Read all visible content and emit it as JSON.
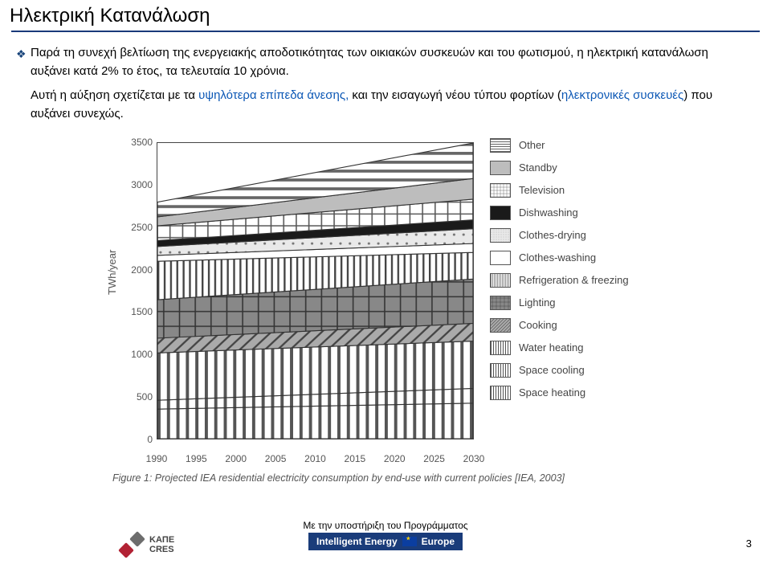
{
  "title": "Ηλεκτρική Κατανάλωση",
  "para1_a": "Παρά τη συνεχή βελτίωση της ενεργειακής αποδοτικότητας των οικιακών συσκευών και του φωτισμού, η ηλεκτρική κατανάλωση αυξάνει κατά 2% το έτος, τα τελευταία 10 χρόνια.",
  "para2_a": "Αυτή η αύξηση σχετίζεται με τα ",
  "para2_link1": "υψηλότερα επίπεδα άνεσης,",
  "para2_b": " και την εισαγωγή νέου τύπου φορτίων (",
  "para2_link2": "ηλεκτρονικές συσκευές",
  "para2_c": ") που αυξάνει συνεχώς.",
  "chart": {
    "yaxis_label": "TWh/year",
    "yticks": [
      0,
      500,
      1000,
      1500,
      2000,
      2500,
      3000,
      3500
    ],
    "xticks": [
      1990,
      1995,
      2000,
      2005,
      2010,
      2015,
      2020,
      2025,
      2030
    ],
    "series": [
      {
        "key": "space_heating",
        "label": "Space heating",
        "fill": "#999",
        "pattern": "vstripe",
        "top1990": 10,
        "top2030": 12
      },
      {
        "key": "space_cooling",
        "label": "Space cooling",
        "fill": "#fff",
        "pattern": "vstripe",
        "top1990": 13,
        "top2030": 17
      },
      {
        "key": "water_heating",
        "label": "Water heating",
        "fill": "#6b6b6b",
        "pattern": "vstripe",
        "top1990": 29,
        "top2030": 33
      },
      {
        "key": "cooking",
        "label": "Cooking",
        "fill": "#888",
        "pattern": "diag",
        "top1990": 34,
        "top2030": 39
      },
      {
        "key": "lighting",
        "label": "Lighting",
        "fill": "#666",
        "pattern": "weave",
        "top1990": 47,
        "top2030": 54
      },
      {
        "key": "refrigeration",
        "label": "Refrigeration & freezing",
        "fill": "#fff",
        "pattern": "vstripe2",
        "top1990": 60,
        "top2030": 63
      },
      {
        "key": "clothes_washing",
        "label": "Clothes-washing",
        "fill": "#fff",
        "pattern": "none",
        "top1990": 62,
        "top2030": 66
      },
      {
        "key": "clothes_drying",
        "label": "Clothes-drying",
        "fill": "#e8e8e8",
        "pattern": "dots",
        "top1990": 65,
        "top2030": 71
      },
      {
        "key": "dishwashing",
        "label": "Dishwashing",
        "fill": "#1a1a1a",
        "pattern": "solid",
        "top1990": 67,
        "top2030": 74
      },
      {
        "key": "television",
        "label": "Television",
        "fill": "#fff",
        "pattern": "grid",
        "top1990": 72,
        "top2030": 81
      },
      {
        "key": "standby",
        "label": "Standby",
        "fill": "#bdbdbd",
        "pattern": "solid",
        "top1990": 75,
        "top2030": 88
      },
      {
        "key": "other",
        "label": "Other",
        "fill": "#fff",
        "pattern": "hstripe",
        "top1990": 80,
        "top2030": 100
      }
    ]
  },
  "caption": "Figure 1: Projected IEA residential electricity consumption by end-use with current policies [IEA, 2003]",
  "footer": {
    "kape1": "ΚΑΠΕ",
    "kape2": "CRES",
    "support": "Με την υποστήριξη του Προγράμματος",
    "badge_a": "Intelligent Energy",
    "badge_b": "Europe"
  },
  "page_number": "3",
  "colors": {
    "rule": "#1a3a7a",
    "link": "#0b57b5",
    "badge_bg": "#1a3c7a"
  }
}
